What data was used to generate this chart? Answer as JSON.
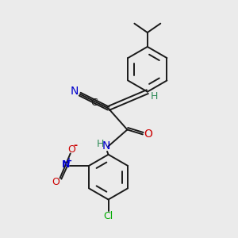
{
  "bg_color": "#ebebeb",
  "bond_color": "#1a1a1a",
  "lw": 1.4,
  "colors": {
    "N": "#0000cc",
    "O": "#cc0000",
    "Cl": "#00aa00",
    "C": "#1a1a1a",
    "H": "#2e8b57"
  },
  "figsize": [
    3.0,
    3.0
  ],
  "dpi": 100
}
